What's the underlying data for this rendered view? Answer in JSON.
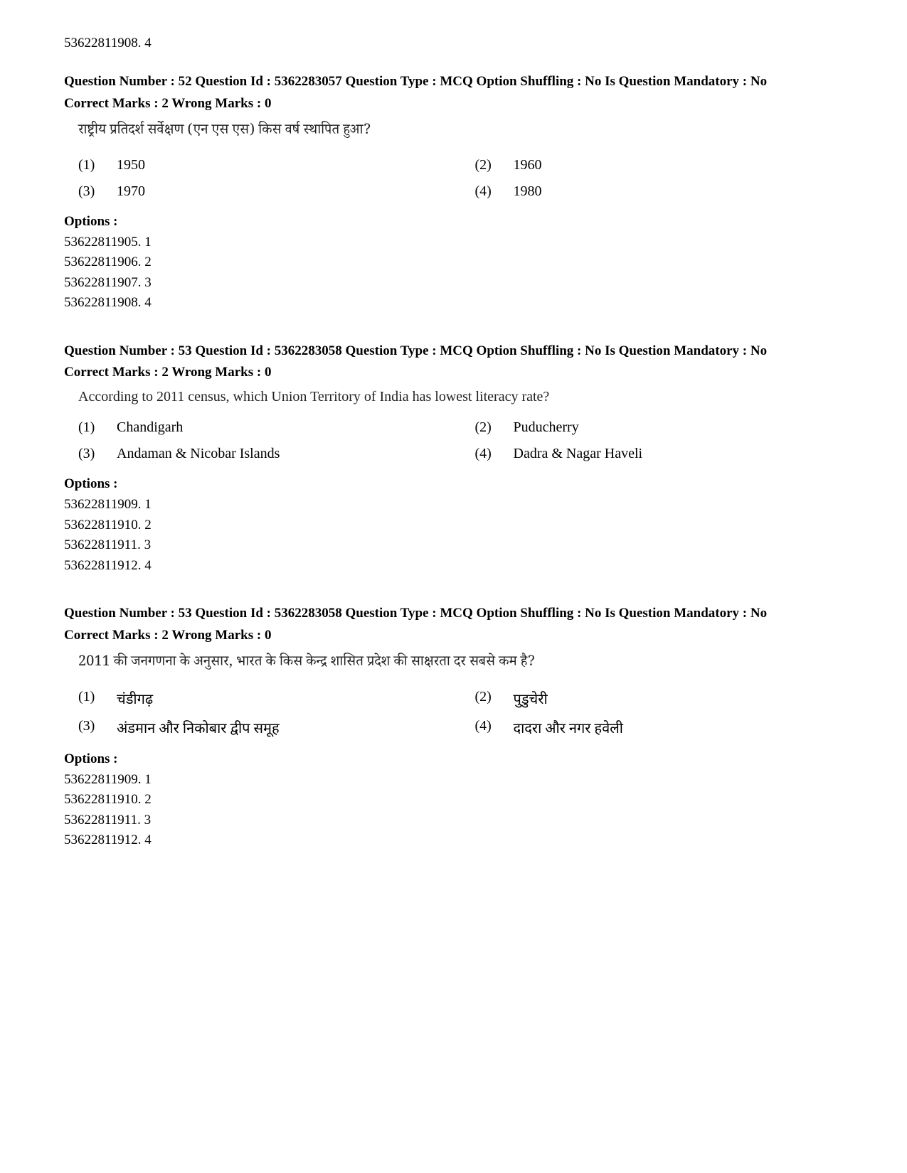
{
  "topLine": "53622811908. 4",
  "questions": [
    {
      "metaLine1": "Question Number : 52 Question Id : 5362283057 Question Type : MCQ Option Shuffling : No Is Question Mandatory : No",
      "marks": "Correct Marks : 2 Wrong Marks : 0",
      "prompt": "राष्ट्रीय प्रतिदर्श सर्वेक्षण (एन एस एस) किस वर्ष स्थापित हुआ?",
      "promptHindi": true,
      "choices": [
        {
          "n": "(1)",
          "t": "1950"
        },
        {
          "n": "(2)",
          "t": "1960"
        },
        {
          "n": "(3)",
          "t": "1970"
        },
        {
          "n": "(4)",
          "t": "1980"
        }
      ],
      "optionsLabel": "Options :",
      "options": [
        "53622811905. 1",
        "53622811906. 2",
        "53622811907. 3",
        "53622811908. 4"
      ]
    },
    {
      "metaLine1": "Question Number : 53 Question Id : 5362283058 Question Type : MCQ Option Shuffling : No Is Question Mandatory : No",
      "marks": "Correct Marks : 2 Wrong Marks : 0",
      "prompt": "According to 2011 census, which Union Territory of India has lowest literacy rate?",
      "promptHindi": false,
      "choices": [
        {
          "n": "(1)",
          "t": "Chandigarh"
        },
        {
          "n": "(2)",
          "t": "Puducherry"
        },
        {
          "n": "(3)",
          "t": "Andaman & Nicobar Islands"
        },
        {
          "n": "(4)",
          "t": "Dadra & Nagar Haveli"
        }
      ],
      "optionsLabel": "Options :",
      "options": [
        "53622811909. 1",
        "53622811910. 2",
        "53622811911. 3",
        "53622811912. 4"
      ]
    },
    {
      "metaLine1": "Question Number : 53 Question Id : 5362283058 Question Type : MCQ Option Shuffling : No Is Question Mandatory : No",
      "marks": "Correct Marks : 2 Wrong Marks : 0",
      "prompt": "2011 की जनगणना के अनुसार, भारत के किस केन्द्र शासित प्रदेश की साक्षरता दर सबसे कम है?",
      "promptHindi": true,
      "choices": [
        {
          "n": "(1)",
          "t": "चंडीगढ़"
        },
        {
          "n": "(2)",
          "t": "पुडुचेरी"
        },
        {
          "n": "(3)",
          "t": "अंडमान और निकोबार द्वीप समूह"
        },
        {
          "n": "(4)",
          "t": "दादरा और नगर हवेली"
        }
      ],
      "optionsLabel": "Options :",
      "options": [
        "53622811909. 1",
        "53622811910. 2",
        "53622811911. 3",
        "53622811912. 4"
      ]
    }
  ]
}
